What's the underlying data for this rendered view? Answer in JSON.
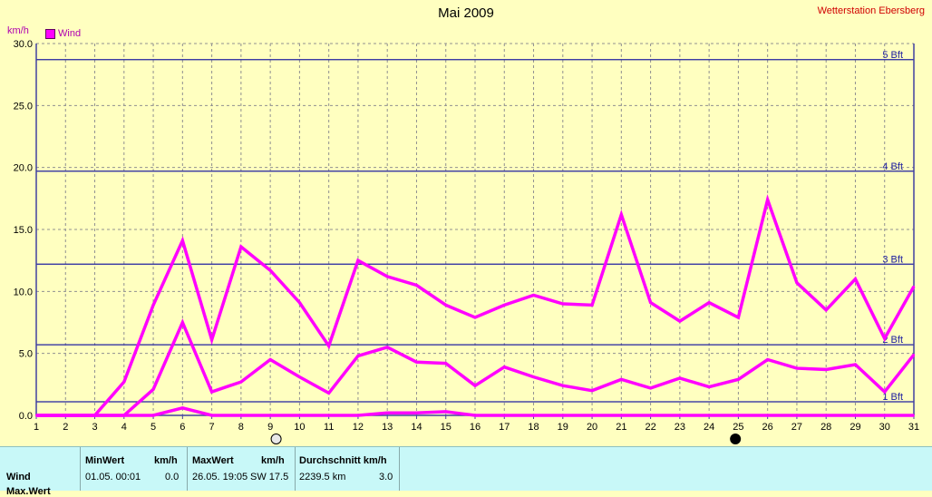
{
  "header": {
    "title": "Mai 2009",
    "station": "Wetterstation Ebersberg",
    "unit": "km/h",
    "legend_label": "Wind"
  },
  "colors": {
    "background": "#ffffc0",
    "series": "#ff00ff",
    "bft_line": "#2020a0",
    "grid": "#909090"
  },
  "chart_data": {
    "type": "line",
    "title": "Mai 2009",
    "ylabel": "km/h",
    "xlabel": "",
    "ylim": [
      0,
      30
    ],
    "y_ticks": [
      "0.0",
      "5.0",
      "10.0",
      "15.0",
      "20.0",
      "25.0",
      "30.0"
    ],
    "x": [
      1,
      2,
      3,
      4,
      5,
      6,
      7,
      8,
      9,
      10,
      11,
      12,
      13,
      14,
      15,
      16,
      17,
      18,
      19,
      20,
      21,
      22,
      23,
      24,
      25,
      26,
      27,
      28,
      29,
      30,
      31
    ],
    "grid": true,
    "legend_position": "top-left",
    "series": [
      {
        "name": "Wind",
        "label": "max",
        "values": [
          0,
          0,
          0,
          2.7,
          8.9,
          14.1,
          6.1,
          13.6,
          11.7,
          9.1,
          5.6,
          12.5,
          11.2,
          10.5,
          8.9,
          7.9,
          8.9,
          9.7,
          9.0,
          8.9,
          16.2,
          9.1,
          7.6,
          9.1,
          7.9,
          17.4,
          10.7,
          8.5,
          11.0,
          6.2,
          10.4
        ]
      },
      {
        "name": "Wind",
        "label": "avg",
        "values": [
          0,
          0,
          0,
          0,
          2.1,
          7.5,
          1.9,
          2.7,
          4.5,
          3.1,
          1.8,
          4.8,
          5.5,
          4.3,
          4.2,
          2.4,
          3.9,
          3.1,
          2.4,
          2.0,
          2.9,
          2.2,
          3.0,
          2.3,
          2.9,
          4.5,
          3.8,
          3.7,
          4.1,
          1.9,
          4.9
        ]
      },
      {
        "name": "Wind",
        "label": "min",
        "values": [
          0,
          0,
          0,
          0,
          0,
          0.6,
          0,
          0,
          0,
          0,
          0,
          0,
          0.2,
          0.2,
          0.3,
          0,
          0,
          0,
          0,
          0,
          0,
          0,
          0,
          0,
          0,
          0,
          0,
          0,
          0,
          0,
          0
        ]
      }
    ],
    "bft_lines": [
      {
        "label": "1 Bft",
        "value": 1.1
      },
      {
        "label": "2 Bft",
        "value": 5.7
      },
      {
        "label": "3 Bft",
        "value": 12.2
      },
      {
        "label": "4 Bft",
        "value": 19.7
      },
      {
        "label": "5 Bft",
        "value": 28.7
      }
    ],
    "moon_phases": [
      {
        "day": 9.2,
        "phase": "full-moon"
      },
      {
        "day": 24.9,
        "phase": "new-moon"
      }
    ]
  },
  "table": {
    "headers": {
      "minwert": "MinWert",
      "min_unit": "km/h",
      "maxwert": "MaxWert",
      "max_unit": "km/h",
      "durchschnitt": "Durchschnitt km/h"
    },
    "row": {
      "label": "Wind",
      "min_time": "01.05.  00:01",
      "min_value": "0.0",
      "max_time": "26.05.  19:05",
      "max_value": "SW 17.5",
      "distance": "2239.5 km",
      "average": "3.0"
    },
    "cut_row_label": "Max.Wert"
  }
}
